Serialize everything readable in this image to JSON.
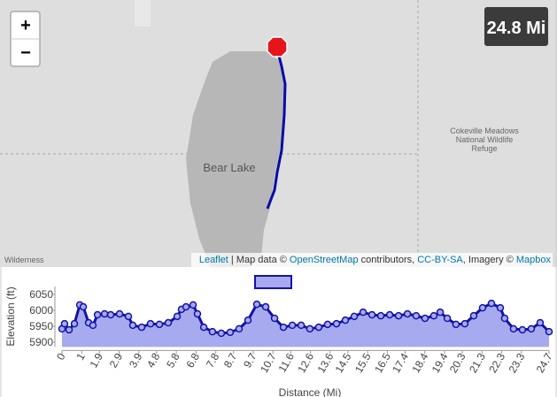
{
  "map": {
    "zoom_in": "+",
    "zoom_out": "−",
    "distance_badge": "24.8 Mi",
    "labels": {
      "lake": "Bear Lake",
      "refuge": [
        "Cokeville Meadows",
        "National Wildlife",
        "Refuge"
      ],
      "wilderness": "Wilderness"
    },
    "attribution": [
      "Leaflet",
      " | Map data © ",
      "OpenStreetMap",
      " contributors, ",
      "CC-BY-SA",
      ", Imagery © ",
      "Mapbox"
    ]
  },
  "chart_data": {
    "type": "area",
    "y_label": "Elevation (ft)",
    "x_label": "Distance (Mi)",
    "x": [
      0,
      0.13,
      0.36,
      0.63,
      0.9,
      1.08,
      1.35,
      1.57,
      1.8,
      2.16,
      2.47,
      2.92,
      3.37,
      3.59,
      4.04,
      4.49,
      4.94,
      5.39,
      5.84,
      6.06,
      6.29,
      6.65,
      6.87,
      7.19,
      7.63,
      8.08,
      8.53,
      8.98,
      9.43,
      9.88,
      10.33,
      10.78,
      11.23,
      11.68,
      12.13,
      12.57,
      13.02,
      13.47,
      13.92,
      14.37,
      14.82,
      15.27,
      15.72,
      16.17,
      16.62,
      17.07,
      17.52,
      17.96,
      18.41,
      18.86,
      19.18,
      19.54,
      19.98,
      20.43,
      20.88,
      21.33,
      21.78,
      22.23,
      22.45,
      22.9,
      23.35,
      23.8,
      24.25,
      24.7
    ],
    "series": [
      {
        "color": "#1313a6",
        "fill": "#a7aaef",
        "values": [
          5942,
          5958,
          5939,
          5958,
          6017,
          6011,
          5961,
          5953,
          5986,
          5989,
          5986,
          5989,
          5981,
          5953,
          5947,
          5958,
          5956,
          5961,
          5981,
          6003,
          6011,
          6017,
          5989,
          5947,
          5933,
          5928,
          5931,
          5942,
          5969,
          6019,
          6011,
          5975,
          5947,
          5953,
          5953,
          5942,
          5947,
          5956,
          5958,
          5969,
          5981,
          5994,
          5986,
          5983,
          5986,
          5983,
          5989,
          5983,
          5975,
          5983,
          5994,
          5975,
          5956,
          5958,
          5983,
          6008,
          6022,
          6008,
          5975,
          5942,
          5939,
          5942,
          5961,
          5933
        ]
      }
    ],
    "xlim": [
      0,
      24.7
    ],
    "ylim": [
      5885,
      6075
    ],
    "xticks": [
      0,
      1,
      1.9,
      2.9,
      3.9,
      4.8,
      5.8,
      6.8,
      7.8,
      8.7,
      9.7,
      10.7,
      11.6,
      12.6,
      13.6,
      14.5,
      15.5,
      16.5,
      17.4,
      18.4,
      19.4,
      20.3,
      21.3,
      22.3,
      23.3,
      24.7
    ],
    "yticks": [
      5900,
      5950,
      6000,
      6050
    ],
    "grid": false,
    "markers": true
  }
}
